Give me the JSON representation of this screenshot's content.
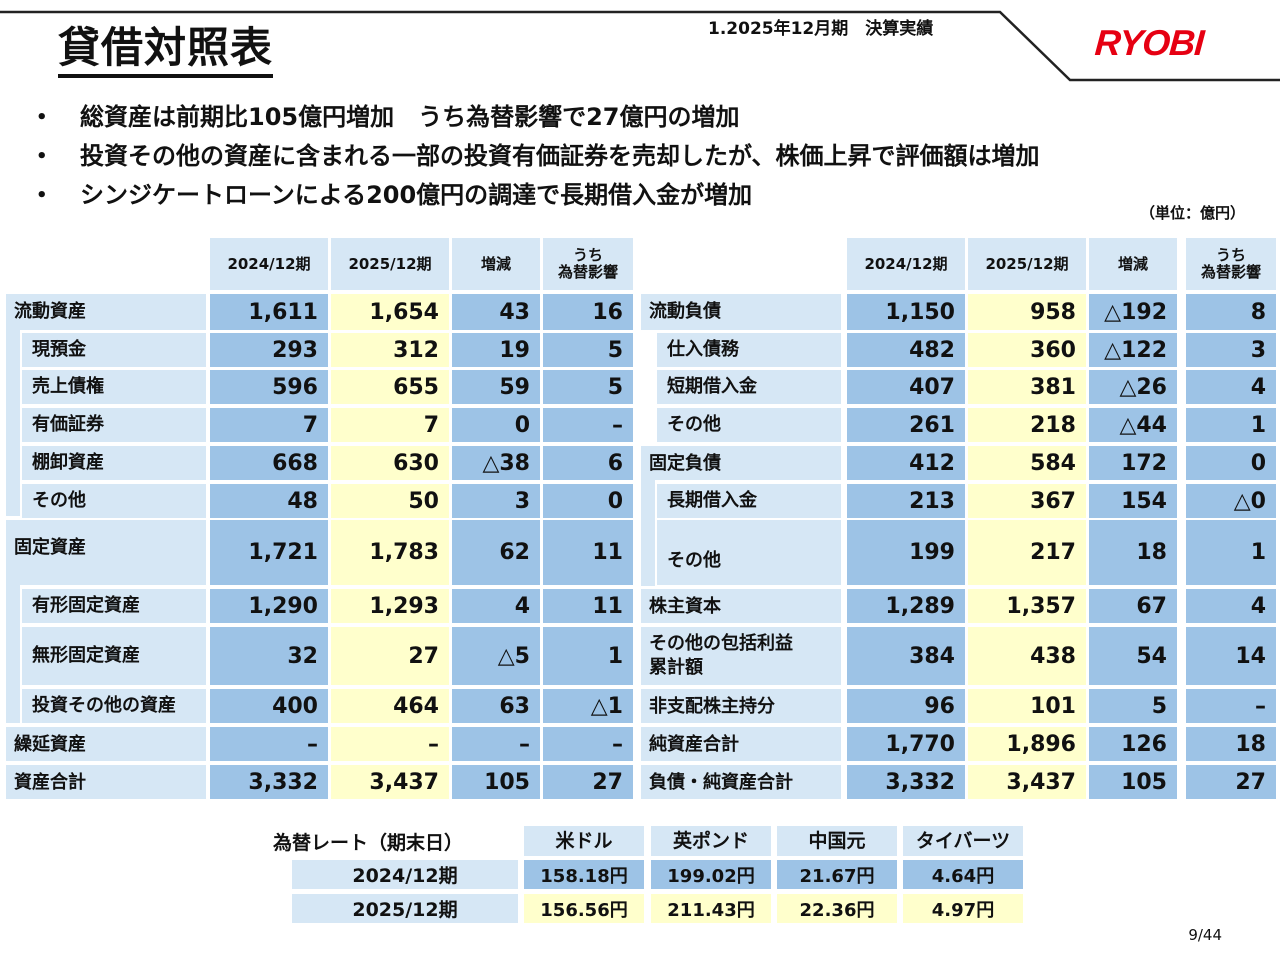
{
  "header": {
    "title": "貸借対照表",
    "section": "1.2025年12月期　決算実績",
    "logo_text": "RYOBI",
    "logo_color": "#e60012"
  },
  "bullets": [
    "総資産は前期比105億円増加　うち為替影響で27億円の増加",
    "投資その他の資産に含まれる一部の投資有価証券を売却したが、株価上昇で評価額は増加",
    "シンジケートローンによる200億円の調達で長期借入金が増加"
  ],
  "bullet_marker": "•",
  "unit": "（単位：億円）",
  "table": {
    "columns": [
      "2024/12期",
      "2025/12期",
      "増減",
      "うち\n為替影響"
    ],
    "assets": [
      {
        "label": "流動資産",
        "v": [
          "1,611",
          "1,654",
          "43",
          "16"
        ]
      },
      {
        "label": "現預金",
        "v": [
          "293",
          "312",
          "19",
          "5"
        ]
      },
      {
        "label": "売上債権",
        "v": [
          "596",
          "655",
          "59",
          "5"
        ]
      },
      {
        "label": "有価証券",
        "v": [
          "7",
          "7",
          "0",
          "–"
        ]
      },
      {
        "label": "棚卸資産",
        "v": [
          "668",
          "630",
          "△38",
          "6"
        ]
      },
      {
        "label": "その他",
        "v": [
          "48",
          "50",
          "3",
          "0"
        ]
      },
      {
        "label": "固定資産",
        "v": [
          "1,721",
          "1,783",
          "62",
          "11"
        ]
      },
      {
        "label": "有形固定資産",
        "v": [
          "1,290",
          "1,293",
          "4",
          "11"
        ]
      },
      {
        "label": "無形固定資産",
        "v": [
          "32",
          "27",
          "△5",
          "1"
        ]
      },
      {
        "label": "投資その他の資産",
        "v": [
          "400",
          "464",
          "63",
          "△1"
        ]
      },
      {
        "label": "繰延資産",
        "v": [
          "–",
          "–",
          "–",
          "–"
        ]
      },
      {
        "label": "資産合計",
        "v": [
          "3,332",
          "3,437",
          "105",
          "27"
        ]
      }
    ],
    "liabilities": [
      {
        "label": "流動負債",
        "v": [
          "1,150",
          "958",
          "△192",
          "8"
        ]
      },
      {
        "label": "仕入債務",
        "v": [
          "482",
          "360",
          "△122",
          "3"
        ]
      },
      {
        "label": "短期借入金",
        "v": [
          "407",
          "381",
          "△26",
          "4"
        ]
      },
      {
        "label": "その他",
        "v": [
          "261",
          "218",
          "△44",
          "1"
        ]
      },
      {
        "label": "固定負債",
        "v": [
          "412",
          "584",
          "172",
          "0"
        ]
      },
      {
        "label": "長期借入金",
        "v": [
          "213",
          "367",
          "154",
          "△0"
        ]
      },
      {
        "label": "その他",
        "v": [
          "199",
          "217",
          "18",
          "1"
        ]
      },
      {
        "label": "株主資本",
        "v": [
          "1,289",
          "1,357",
          "67",
          "4"
        ]
      },
      {
        "label": "その他の包括利益\n累計額",
        "v": [
          "384",
          "438",
          "54",
          "14"
        ]
      },
      {
        "label": "非支配株主持分",
        "v": [
          "96",
          "101",
          "5",
          "–"
        ]
      },
      {
        "label": "純資産合計",
        "v": [
          "1,770",
          "1,896",
          "126",
          "18"
        ]
      },
      {
        "label": "負債・純資産合計",
        "v": [
          "3,332",
          "3,437",
          "105",
          "27"
        ]
      }
    ]
  },
  "fx": {
    "label": "為替レート（期末日）",
    "currencies": [
      "米ドル",
      "英ポンド",
      "中国元",
      "タイバーツ"
    ],
    "rows": [
      {
        "period": "2024/12期",
        "v": [
          "158.18円",
          "199.02円",
          "21.67円",
          "4.64円"
        ]
      },
      {
        "period": "2025/12期",
        "v": [
          "156.56円",
          "211.43円",
          "22.36円",
          "4.97円"
        ]
      }
    ]
  },
  "page_number": "9/44",
  "colors": {
    "header_bg": "#d6e7f5",
    "col_2024": "#9dc3e6",
    "col_2025": "#ffffcc",
    "col_diff": "#9dc3e6"
  }
}
